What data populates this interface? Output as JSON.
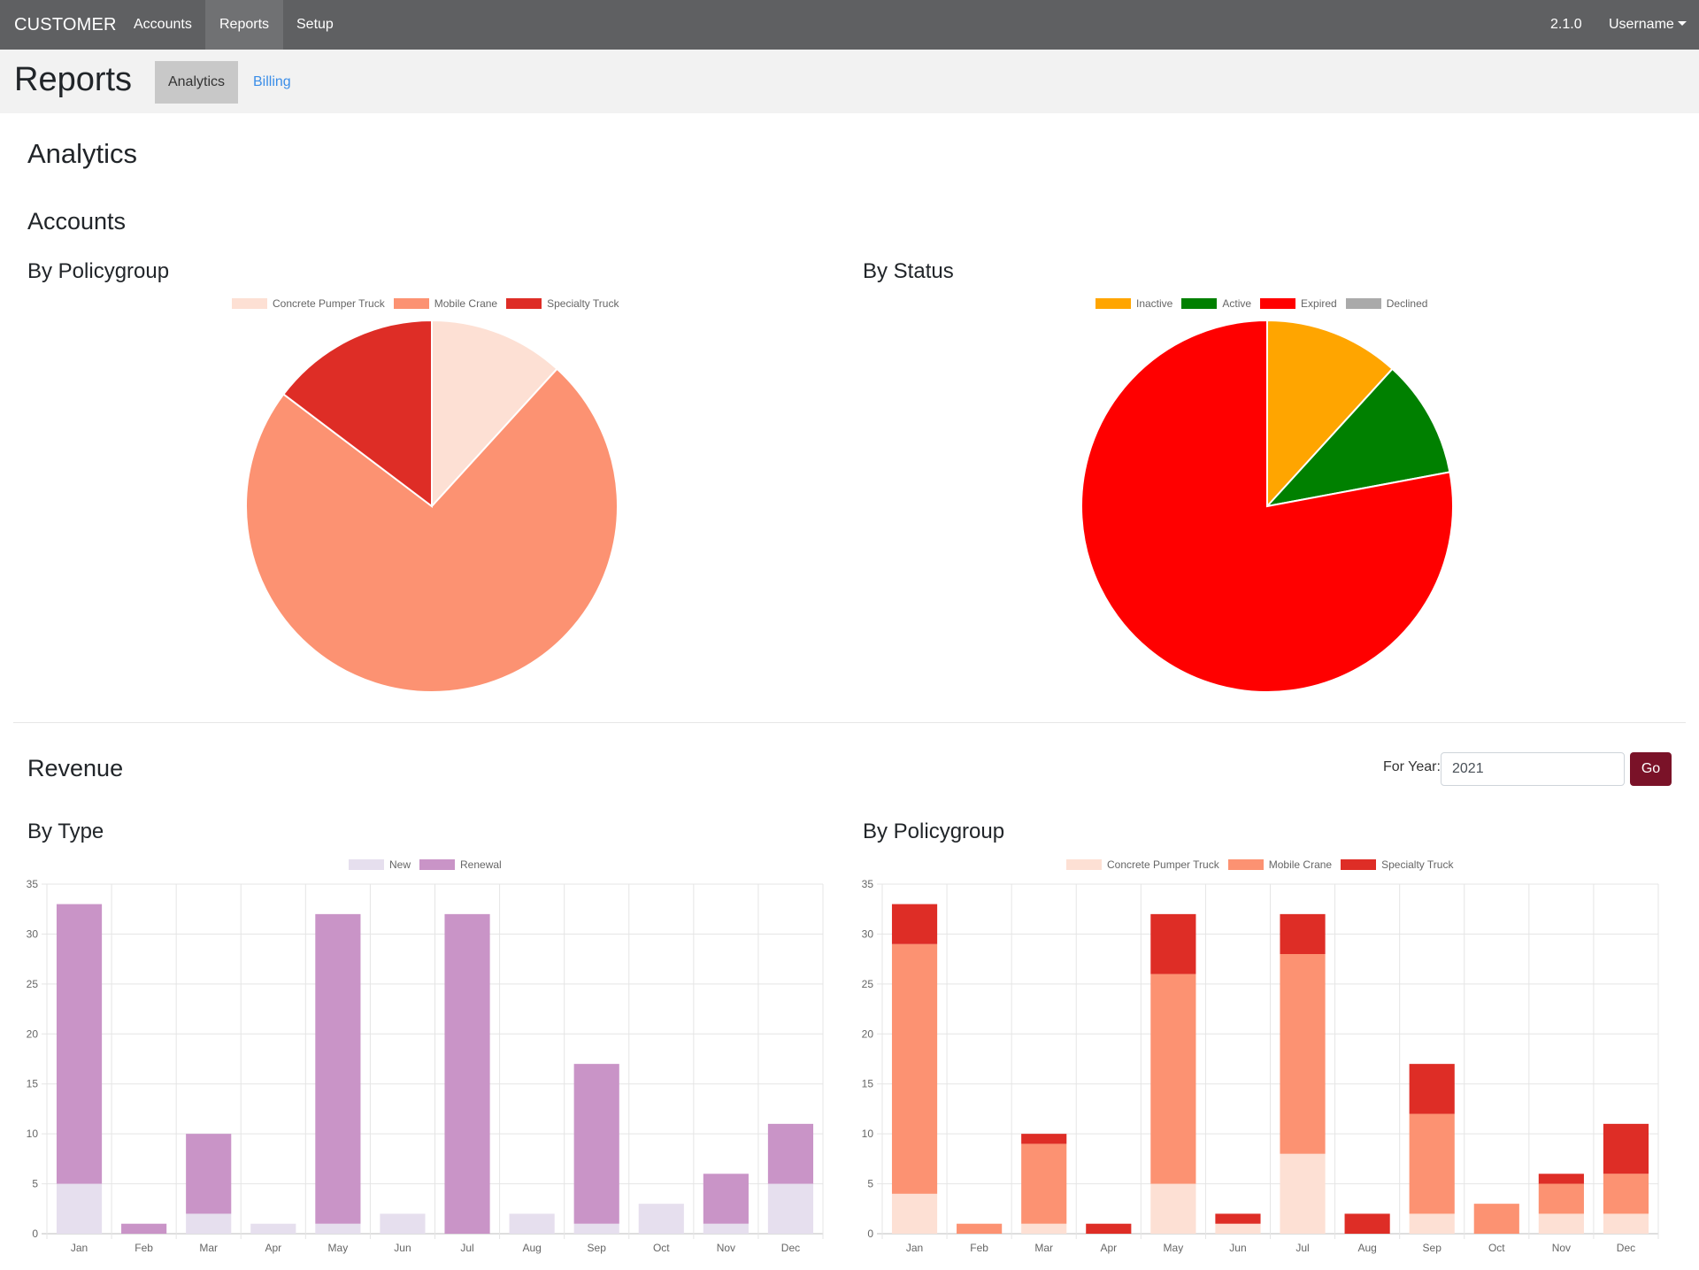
{
  "navbar": {
    "brand": "CUSTOMER",
    "items": [
      {
        "label": "Accounts",
        "active": false
      },
      {
        "label": "Reports",
        "active": true
      },
      {
        "label": "Setup",
        "active": false
      }
    ],
    "version": "2.1.0",
    "user": "Username"
  },
  "subheader": {
    "title": "Reports",
    "tabs": [
      {
        "label": "Analytics",
        "active": true
      },
      {
        "label": "Billing",
        "active": false
      }
    ]
  },
  "main": {
    "heading": "Analytics",
    "accounts_heading": "Accounts",
    "revenue_heading": "Revenue",
    "year_filter": {
      "label": "For Year:",
      "value": "2021",
      "button": "Go"
    }
  },
  "chart_data": [
    {
      "id": "accounts-policygroup",
      "type": "pie",
      "title": "By Policygroup",
      "labels": [
        "Concrete Pumper Truck",
        "Mobile Crane",
        "Specialty Truck"
      ],
      "values": [
        4,
        25,
        5
      ],
      "colors": [
        "#fde0d4",
        "#fc9272",
        "#de2d26"
      ],
      "legend": "top"
    },
    {
      "id": "accounts-status",
      "type": "pie",
      "title": "By Status",
      "labels": [
        "Inactive",
        "Active",
        "Expired",
        "Declined"
      ],
      "values": [
        4,
        3.5,
        26.5,
        0
      ],
      "colors": [
        "#ffa500",
        "#008000",
        "#ff0000",
        "#aaaaaa"
      ],
      "legend": "top"
    },
    {
      "id": "revenue-type",
      "type": "bar",
      "stacked": true,
      "title": "By Type",
      "categories": [
        "Jan",
        "Feb",
        "Mar",
        "Apr",
        "May",
        "Jun",
        "Jul",
        "Aug",
        "Sep",
        "Oct",
        "Nov",
        "Dec"
      ],
      "series": [
        {
          "name": "New",
          "color": "#e6dfee",
          "values": [
            5,
            0,
            2,
            1,
            1,
            2,
            0,
            2,
            1,
            3,
            1,
            5
          ]
        },
        {
          "name": "Renewal",
          "color": "#c994c7",
          "values": [
            28,
            1,
            8,
            0,
            31,
            0,
            32,
            0,
            16,
            0,
            5,
            6
          ]
        }
      ],
      "ylim": [
        0,
        35
      ],
      "yticks": [
        0,
        5,
        10,
        15,
        20,
        25,
        30,
        35
      ],
      "grid": true,
      "legend": "top"
    },
    {
      "id": "revenue-policygroup",
      "type": "bar",
      "stacked": true,
      "title": "By Policygroup",
      "categories": [
        "Jan",
        "Feb",
        "Mar",
        "Apr",
        "May",
        "Jun",
        "Jul",
        "Aug",
        "Sep",
        "Oct",
        "Nov",
        "Dec"
      ],
      "series": [
        {
          "name": "Concrete Pumper Truck",
          "color": "#fde0d4",
          "values": [
            4,
            0,
            1,
            0,
            5,
            1,
            8,
            0,
            2,
            0,
            2,
            2
          ]
        },
        {
          "name": "Mobile Crane",
          "color": "#fc9272",
          "values": [
            25,
            1,
            8,
            0,
            21,
            0,
            20,
            0,
            10,
            3,
            3,
            4
          ]
        },
        {
          "name": "Specialty Truck",
          "color": "#de2d26",
          "values": [
            4,
            0,
            1,
            1,
            6,
            1,
            4,
            2,
            5,
            0,
            1,
            5
          ]
        }
      ],
      "ylim": [
        0,
        35
      ],
      "yticks": [
        0,
        5,
        10,
        15,
        20,
        25,
        30,
        35
      ],
      "grid": true,
      "legend": "top"
    }
  ]
}
